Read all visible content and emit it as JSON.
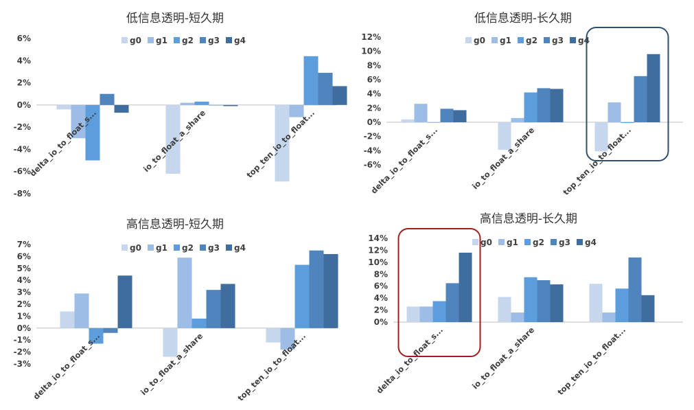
{
  "colors": [
    "#c6d6ec",
    "#9ebde6",
    "#5e9ddb",
    "#4f84bc",
    "#3e6d9e"
  ],
  "highlight_colors": {
    "blue-box": "#2f4f6f",
    "red-box": "#a11d1d"
  },
  "chart_data": [
    {
      "type": "bar",
      "title": "低信息透明-短久期",
      "categories": [
        "delta_io_to_float_s...",
        "io_to_float_a_share",
        "top_ten_io_to_float..."
      ],
      "series": [
        {
          "name": "g0",
          "values": [
            -0.4,
            -6.2,
            -6.9
          ]
        },
        {
          "name": "g1",
          "values": [
            -3.0,
            0.2,
            -1.1
          ]
        },
        {
          "name": "g2",
          "values": [
            -5.0,
            0.3,
            4.4
          ]
        },
        {
          "name": "g3",
          "values": [
            1.0,
            0.0,
            2.9
          ]
        },
        {
          "name": "g4",
          "values": [
            -0.7,
            -0.1,
            1.7
          ]
        }
      ],
      "ylim": [
        -8,
        6
      ],
      "yticks": [
        -8,
        -6,
        -4,
        -2,
        0,
        2,
        4,
        6
      ],
      "unit": "%",
      "legend": "top"
    },
    {
      "type": "bar",
      "title": "低信息透明-长久期",
      "categories": [
        "delta_io_to_float_s...",
        "io_to_float_a_share",
        "top_ten_io_to_float..."
      ],
      "series": [
        {
          "name": "g0",
          "values": [
            0.4,
            -3.9,
            -4.1
          ]
        },
        {
          "name": "g1",
          "values": [
            2.6,
            0.6,
            2.8
          ]
        },
        {
          "name": "g2",
          "values": [
            0.0,
            4.2,
            -0.1
          ]
        },
        {
          "name": "g3",
          "values": [
            1.9,
            4.8,
            6.5
          ]
        },
        {
          "name": "g4",
          "values": [
            1.7,
            4.7,
            9.6
          ]
        }
      ],
      "ylim": [
        -6,
        12
      ],
      "yticks": [
        -6,
        -4,
        -2,
        0,
        2,
        4,
        6,
        8,
        10,
        12
      ],
      "unit": "%",
      "legend": "top",
      "highlight": {
        "category_index": 2,
        "color_key": "blue-box"
      }
    },
    {
      "type": "bar",
      "title": "高信息透明-短久期",
      "categories": [
        "delta_io_to_float_s...",
        "io_to_float_a_share",
        "top_ten_io_to_float..."
      ],
      "series": [
        {
          "name": "g0",
          "values": [
            1.4,
            -2.4,
            -1.2
          ]
        },
        {
          "name": "g1",
          "values": [
            2.9,
            5.9,
            -1.8
          ]
        },
        {
          "name": "g2",
          "values": [
            -1.3,
            0.8,
            5.3
          ]
        },
        {
          "name": "g3",
          "values": [
            -0.4,
            3.2,
            6.5
          ]
        },
        {
          "name": "g4",
          "values": [
            4.4,
            3.7,
            6.2
          ]
        }
      ],
      "ylim": [
        -3,
        7
      ],
      "yticks": [
        -3,
        -2,
        -1,
        0,
        1,
        2,
        3,
        4,
        5,
        6,
        7
      ],
      "unit": "%",
      "legend": "top"
    },
    {
      "type": "bar",
      "title": "高信息透明-长久期",
      "categories": [
        "delta_io_to_float_s...",
        "io_to_float_a_share",
        "top_ten_io_to_float..."
      ],
      "series": [
        {
          "name": "g0",
          "values": [
            2.6,
            4.2,
            6.4
          ]
        },
        {
          "name": "g1",
          "values": [
            2.6,
            1.6,
            1.6
          ]
        },
        {
          "name": "g2",
          "values": [
            3.5,
            7.5,
            5.6
          ]
        },
        {
          "name": "g3",
          "values": [
            6.5,
            7.0,
            10.8
          ]
        },
        {
          "name": "g4",
          "values": [
            11.6,
            6.3,
            4.5
          ]
        }
      ],
      "ylim": [
        0,
        14
      ],
      "yticks": [
        0,
        2,
        4,
        6,
        8,
        10,
        12,
        14
      ],
      "unit": "%",
      "legend": "top",
      "highlight": {
        "category_index": 0,
        "color_key": "red-box"
      }
    }
  ]
}
